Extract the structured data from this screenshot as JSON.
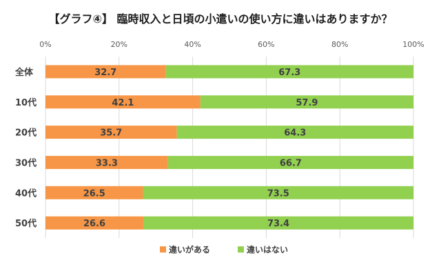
{
  "chart_data": {
    "type": "bar",
    "orientation": "horizontal",
    "stacked": true,
    "percent_stacked": true,
    "title": "【グラフ④】 臨時収入と日頃の小遣いの使い方に違いはありますか？",
    "categories": [
      "全体",
      "10代",
      "20代",
      "30代",
      "40代",
      "50代"
    ],
    "series": [
      {
        "name": "違いがある",
        "color": "#f79646",
        "values": [
          32.7,
          42.1,
          35.7,
          33.3,
          26.5,
          26.6
        ]
      },
      {
        "name": "違いはない",
        "color": "#92d050",
        "values": [
          67.3,
          57.9,
          64.3,
          66.7,
          73.5,
          73.4
        ]
      }
    ],
    "xlim": [
      0,
      100
    ],
    "xticks": [
      "0%",
      "20%",
      "40%",
      "60%",
      "80%",
      "100%"
    ],
    "grid": true,
    "legend": "bottom"
  }
}
